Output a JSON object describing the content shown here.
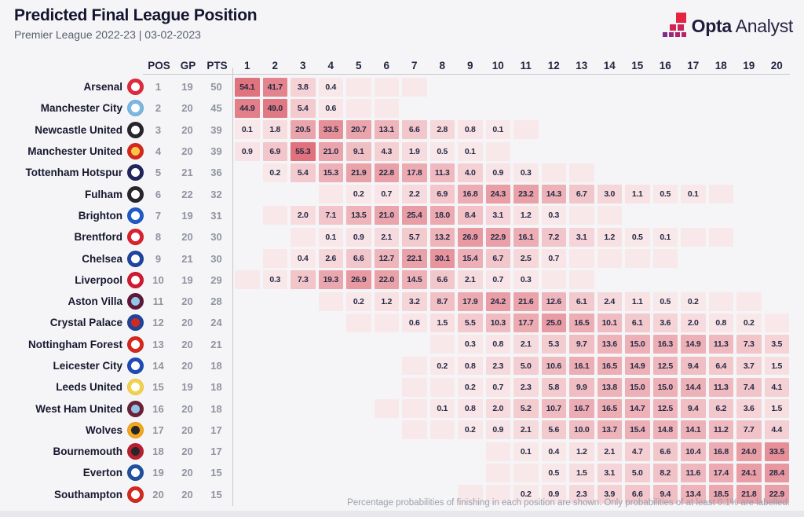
{
  "header": {
    "title": "Predicted Final League Position",
    "subtitle": "Premier League 2022-23 | 03-02-2023",
    "logo_bold": "Opta",
    "logo_light": "Analyst"
  },
  "columns": {
    "pos": "POS",
    "gp": "GP",
    "pts": "PTS"
  },
  "footer": {
    "note": "Percentage probabilities of finishing in each position are shown. Only probabilities of at least 0.1% are labelled."
  },
  "colors": {
    "heat_low": "#fcf4f5",
    "heat_high": "#df717c",
    "cell_text": "#262a44",
    "background": "#f5f5f7"
  },
  "chart_data": {
    "type": "heatmap",
    "title": "Predicted Final League Position",
    "subtitle": "Premier League 2022-23 | 03-02-2023",
    "x_labels": [
      "1",
      "2",
      "3",
      "4",
      "5",
      "6",
      "7",
      "8",
      "9",
      "10",
      "11",
      "12",
      "13",
      "14",
      "15",
      "16",
      "17",
      "18",
      "19",
      "20"
    ],
    "stat_columns": [
      "POS",
      "GP",
      "PTS"
    ],
    "label_threshold": 0.1,
    "note": "Percentage probabilities of finishing in each position are shown. Only probabilities of at least 0.1% are labelled.",
    "teams": [
      {
        "name": "Arsenal",
        "pos": 1,
        "gp": 19,
        "pts": 50,
        "badge": [
          "#e02a3c",
          "#ffffff"
        ],
        "probs": [
          54.1,
          41.7,
          3.8,
          0.4,
          0.05,
          0.05,
          0.05,
          null,
          null,
          null,
          null,
          null,
          null,
          null,
          null,
          null,
          null,
          null,
          null,
          null
        ]
      },
      {
        "name": "Manchester City",
        "pos": 2,
        "gp": 20,
        "pts": 45,
        "badge": [
          "#79b7e4",
          "#ffffff"
        ],
        "probs": [
          44.9,
          49.0,
          5.4,
          0.6,
          0.05,
          0.05,
          null,
          null,
          null,
          null,
          null,
          null,
          null,
          null,
          null,
          null,
          null,
          null,
          null,
          null
        ]
      },
      {
        "name": "Newcastle United",
        "pos": 3,
        "gp": 20,
        "pts": 39,
        "badge": [
          "#26262b",
          "#ffffff"
        ],
        "probs": [
          0.1,
          1.8,
          20.5,
          33.5,
          20.7,
          13.1,
          6.6,
          2.8,
          0.8,
          0.1,
          0.05,
          null,
          null,
          null,
          null,
          null,
          null,
          null,
          null,
          null
        ]
      },
      {
        "name": "Manchester United",
        "pos": 4,
        "gp": 20,
        "pts": 39,
        "badge": [
          "#d5281f",
          "#f9c646"
        ],
        "probs": [
          0.9,
          6.9,
          55.3,
          21.0,
          9.1,
          4.3,
          1.9,
          0.5,
          0.1,
          0.05,
          null,
          null,
          null,
          null,
          null,
          null,
          null,
          null,
          null,
          null
        ]
      },
      {
        "name": "Tottenham Hotspur",
        "pos": 5,
        "gp": 21,
        "pts": 36,
        "badge": [
          "#22255c",
          "#ffffff"
        ],
        "probs": [
          null,
          0.2,
          5.4,
          15.3,
          21.9,
          22.8,
          17.8,
          11.3,
          4.0,
          0.9,
          0.3,
          0.05,
          0.05,
          null,
          null,
          null,
          null,
          null,
          null,
          null
        ]
      },
      {
        "name": "Fulham",
        "pos": 6,
        "gp": 22,
        "pts": 32,
        "badge": [
          "#26262b",
          "#ffffff"
        ],
        "probs": [
          null,
          null,
          null,
          0.05,
          0.2,
          0.7,
          2.2,
          6.9,
          16.8,
          24.3,
          23.2,
          14.3,
          6.7,
          3.0,
          1.1,
          0.5,
          0.1,
          0.05,
          null,
          null
        ]
      },
      {
        "name": "Brighton",
        "pos": 7,
        "gp": 19,
        "pts": 31,
        "badge": [
          "#1e5bc6",
          "#ffffff"
        ],
        "probs": [
          null,
          0.05,
          2.0,
          7.1,
          13.5,
          21.0,
          25.4,
          18.0,
          8.4,
          3.1,
          1.2,
          0.3,
          0.05,
          0.05,
          null,
          null,
          null,
          null,
          null,
          null
        ]
      },
      {
        "name": "Brentford",
        "pos": 8,
        "gp": 20,
        "pts": 30,
        "badge": [
          "#d8232f",
          "#ffffff"
        ],
        "probs": [
          null,
          null,
          0.05,
          0.1,
          0.9,
          2.1,
          5.7,
          13.2,
          26.9,
          22.9,
          16.1,
          7.2,
          3.1,
          1.2,
          0.5,
          0.1,
          0.05,
          0.05,
          null,
          null
        ]
      },
      {
        "name": "Chelsea",
        "pos": 9,
        "gp": 21,
        "pts": 30,
        "badge": [
          "#1d44a0",
          "#ffffff"
        ],
        "probs": [
          null,
          0.05,
          0.4,
          2.6,
          6.6,
          12.7,
          22.1,
          30.1,
          15.4,
          6.7,
          2.5,
          0.7,
          0.05,
          0.05,
          0.05,
          0.05,
          null,
          null,
          null,
          null
        ]
      },
      {
        "name": "Liverpool",
        "pos": 10,
        "gp": 19,
        "pts": 29,
        "badge": [
          "#d01a32",
          "#ffffff"
        ],
        "probs": [
          0.05,
          0.3,
          7.3,
          19.3,
          26.9,
          22.0,
          14.5,
          6.6,
          2.1,
          0.7,
          0.3,
          0.05,
          0.05,
          null,
          null,
          null,
          null,
          null,
          null,
          null
        ]
      },
      {
        "name": "Aston Villa",
        "pos": 11,
        "gp": 20,
        "pts": 28,
        "badge": [
          "#5f173a",
          "#93c6e6"
        ],
        "probs": [
          null,
          null,
          null,
          0.05,
          0.2,
          1.2,
          3.2,
          8.7,
          17.9,
          24.2,
          21.6,
          12.6,
          6.1,
          2.4,
          1.1,
          0.5,
          0.2,
          0.05,
          0.05,
          null
        ]
      },
      {
        "name": "Crystal Palace",
        "pos": 12,
        "gp": 20,
        "pts": 24,
        "badge": [
          "#20449c",
          "#d5281f"
        ],
        "probs": [
          null,
          null,
          null,
          null,
          0.05,
          0.05,
          0.6,
          1.5,
          5.5,
          10.3,
          17.7,
          25.0,
          16.5,
          10.1,
          6.1,
          3.6,
          2.0,
          0.8,
          0.2,
          0.05
        ]
      },
      {
        "name": "Nottingham Forest",
        "pos": 13,
        "gp": 20,
        "pts": 21,
        "badge": [
          "#d5281f",
          "#ffffff"
        ],
        "probs": [
          null,
          null,
          null,
          null,
          null,
          null,
          null,
          0.05,
          0.3,
          0.8,
          2.1,
          5.3,
          9.7,
          13.6,
          15.0,
          16.3,
          14.9,
          11.3,
          7.3,
          3.5
        ]
      },
      {
        "name": "Leicester City",
        "pos": 14,
        "gp": 20,
        "pts": 18,
        "badge": [
          "#1f4bb4",
          "#ffffff"
        ],
        "probs": [
          null,
          null,
          null,
          null,
          null,
          null,
          0.05,
          0.2,
          0.8,
          2.3,
          5.0,
          10.6,
          16.1,
          16.5,
          14.9,
          12.5,
          9.4,
          6.4,
          3.7,
          1.5
        ]
      },
      {
        "name": "Leeds United",
        "pos": 15,
        "gp": 19,
        "pts": 18,
        "badge": [
          "#f3d24b",
          "#ffffff"
        ],
        "probs": [
          null,
          null,
          null,
          null,
          null,
          null,
          0.05,
          0.05,
          0.2,
          0.7,
          2.3,
          5.8,
          9.9,
          13.8,
          15.0,
          15.0,
          14.4,
          11.3,
          7.4,
          4.1
        ]
      },
      {
        "name": "West Ham United",
        "pos": 16,
        "gp": 20,
        "pts": 18,
        "badge": [
          "#6d2139",
          "#92c3e2"
        ],
        "probs": [
          null,
          null,
          null,
          null,
          null,
          0.05,
          0.05,
          0.1,
          0.8,
          2.0,
          5.2,
          10.7,
          16.7,
          16.5,
          14.7,
          12.5,
          9.4,
          6.2,
          3.6,
          1.5
        ]
      },
      {
        "name": "Wolves",
        "pos": 17,
        "gp": 20,
        "pts": 17,
        "badge": [
          "#f3a71c",
          "#26262b"
        ],
        "probs": [
          null,
          null,
          null,
          null,
          null,
          null,
          0.05,
          0.05,
          0.2,
          0.9,
          2.1,
          5.6,
          10.0,
          13.7,
          15.4,
          14.8,
          14.1,
          11.2,
          7.7,
          4.4
        ]
      },
      {
        "name": "Bournemouth",
        "pos": 18,
        "gp": 20,
        "pts": 17,
        "badge": [
          "#bb1f2f",
          "#26262b"
        ],
        "probs": [
          null,
          null,
          null,
          null,
          null,
          null,
          null,
          null,
          null,
          0.05,
          0.1,
          0.4,
          1.2,
          2.1,
          4.7,
          6.6,
          10.4,
          16.8,
          24.0,
          33.5
        ]
      },
      {
        "name": "Everton",
        "pos": 19,
        "gp": 20,
        "pts": 15,
        "badge": [
          "#2050a0",
          "#ffffff"
        ],
        "probs": [
          null,
          null,
          null,
          null,
          null,
          null,
          null,
          null,
          null,
          0.05,
          0.05,
          0.5,
          1.5,
          3.1,
          5.0,
          8.2,
          11.6,
          17.4,
          24.1,
          28.4
        ]
      },
      {
        "name": "Southampton",
        "pos": 20,
        "gp": 20,
        "pts": 15,
        "badge": [
          "#d5281f",
          "#ffffff"
        ],
        "probs": [
          null,
          null,
          null,
          null,
          null,
          null,
          null,
          null,
          0.05,
          0.05,
          0.2,
          0.9,
          2.3,
          3.9,
          6.6,
          9.4,
          13.4,
          18.5,
          21.8,
          22.9
        ]
      }
    ]
  }
}
